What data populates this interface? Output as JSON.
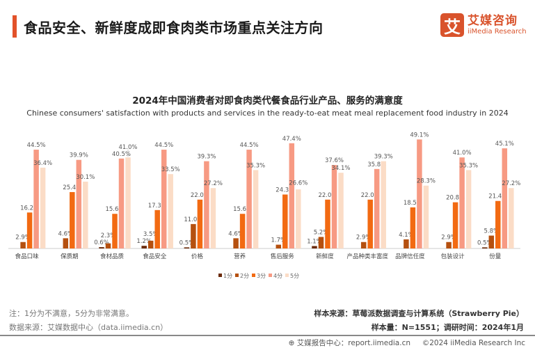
{
  "header": {
    "title": "食品安全、新鲜度成即食肉类市场重点关注方向"
  },
  "logo": {
    "mark": "艾",
    "cn": "艾媒咨询",
    "en": "iiMedia Research"
  },
  "chart_data": {
    "type": "bar",
    "title": "2024年中国消费者对即食肉类代餐食品行业产品、服务的满意度",
    "subtitle": "Chinese consumers' satisfaction with products and services in the ready-to-eat meat meal replacement food industry in 2024",
    "categories": [
      "食品口味",
      "保质期",
      "食材品质",
      "食品安全",
      "价格",
      "营养",
      "售后服务",
      "新鲜度",
      "产品种类丰富度",
      "品牌信任度",
      "包装设计",
      "份量"
    ],
    "series": [
      {
        "name": "1分",
        "color": "#6b2a0a",
        "values": [
          null,
          null,
          0.6,
          1.2,
          0.5,
          null,
          null,
          1.1,
          null,
          null,
          null,
          0.5
        ]
      },
      {
        "name": "2分",
        "color": "#b5500f",
        "values": [
          2.9,
          4.6,
          2.3,
          3.5,
          11.0,
          4.6,
          1.7,
          5.2,
          2.9,
          4.1,
          2.9,
          5.8
        ]
      },
      {
        "name": "3分",
        "color": "#f26a12",
        "values": [
          16.2,
          25.4,
          15.6,
          17.3,
          22.0,
          15.6,
          24.3,
          22.0,
          22.0,
          18.5,
          20.8,
          21.4
        ]
      },
      {
        "name": "4分",
        "color": "#f79a83",
        "values": [
          44.5,
          39.9,
          40.5,
          44.5,
          39.3,
          44.5,
          47.4,
          37.6,
          35.8,
          49.1,
          41.0,
          45.1
        ]
      },
      {
        "name": "5分",
        "color": "#fbdcc6",
        "values": [
          36.4,
          30.1,
          41.0,
          33.5,
          27.2,
          35.3,
          26.6,
          34.1,
          39.3,
          28.3,
          35.3,
          27.2
        ]
      }
    ],
    "unit": "%",
    "ylim": [
      0,
      50
    ],
    "grid": false,
    "legend": "bottom"
  },
  "notes": {
    "note": "注：1分为不满意，5分为非常满意。",
    "data_source": "数据来源：艾媒数据中心（data.iimedia.cn）",
    "sample_source": "样本来源：草莓派数据调查与计算系统（Strawberry Pie）",
    "sample_size": "样本量：N=1551；调研时间：2024年1月"
  },
  "footer": {
    "report": "艾媒报告中心：report.iimedia.cn",
    "copyright": "©2024  iiMedia Research  Inc"
  }
}
